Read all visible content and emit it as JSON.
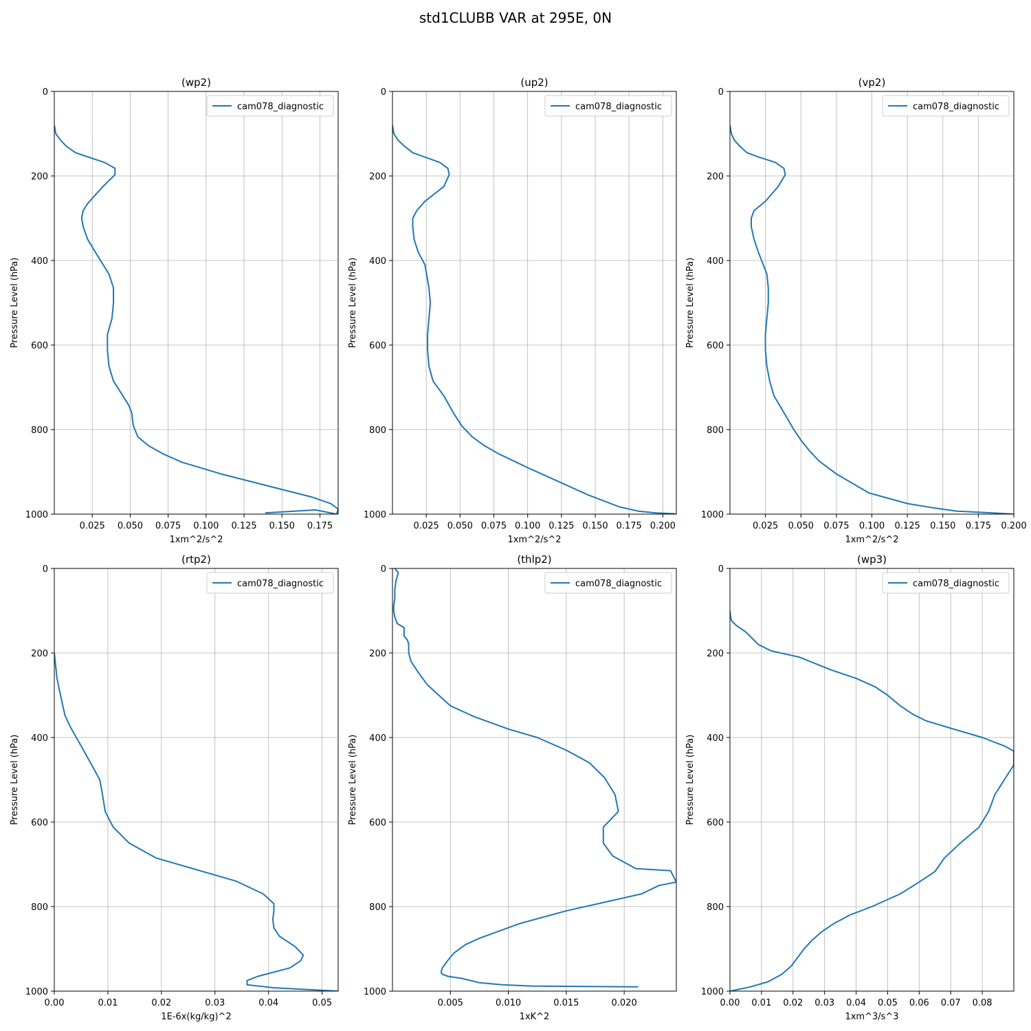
{
  "figure_title": "std1CLUBB VAR at 295E, 0N",
  "colors": {
    "series": "#1f77b4",
    "grid": "#b0b0b0",
    "axis": "#000000"
  },
  "chart_data": [
    {
      "type": "line",
      "title": "(wp2)",
      "xlabel": "1xm^2/s^2",
      "ylabel": "Pressure Level (hPa)",
      "xlim": [
        0.0,
        0.187
      ],
      "ylim": [
        1000,
        0
      ],
      "xticks": [
        0.025,
        0.05,
        0.075,
        0.1,
        0.125,
        0.15,
        0.175
      ],
      "xtick_labels": [
        "0.025",
        "0.050",
        "0.075",
        "0.100",
        "0.125",
        "0.150",
        "0.175"
      ],
      "yticks": [
        0,
        200,
        400,
        600,
        800,
        1000
      ],
      "ytick_labels": [
        "0",
        "200",
        "400",
        "600",
        "800",
        "1000"
      ],
      "grid": true,
      "legend_position": "upper right",
      "series": [
        {
          "name": "cam078_diagnostic",
          "x": [
            0.0,
            0.001,
            0.004,
            0.008,
            0.014,
            0.033,
            0.04,
            0.04,
            0.032,
            0.022,
            0.019,
            0.018,
            0.019,
            0.022,
            0.027,
            0.036,
            0.039,
            0.039,
            0.038,
            0.035,
            0.035,
            0.036,
            0.039,
            0.049,
            0.051,
            0.052,
            0.055,
            0.062,
            0.072,
            0.084,
            0.11,
            0.17,
            0.182,
            0.187,
            0.186,
            0.172,
            0.139
          ],
          "y": [
            80,
            100,
            115,
            130,
            145,
            168,
            182,
            197,
            225,
            265,
            282,
            300,
            320,
            350,
            380,
            432,
            465,
            500,
            537,
            575,
            612,
            650,
            685,
            742,
            760,
            790,
            817,
            838,
            858,
            877,
            905,
            960,
            975,
            988,
            1000,
            990,
            997
          ]
        }
      ]
    },
    {
      "type": "line",
      "title": "(up2)",
      "xlabel": "1xm^2/s^2",
      "ylabel": "Pressure Level (hPa)",
      "xlim": [
        0.0,
        0.21
      ],
      "ylim": [
        1000,
        0
      ],
      "xticks": [
        0.025,
        0.05,
        0.075,
        0.1,
        0.125,
        0.15,
        0.175,
        0.2
      ],
      "xtick_labels": [
        "0.025",
        "0.050",
        "0.075",
        "0.100",
        "0.125",
        "0.150",
        "0.175",
        "0.200"
      ],
      "yticks": [
        0,
        200,
        400,
        600,
        800,
        1000
      ],
      "ytick_labels": [
        "0",
        "200",
        "400",
        "600",
        "800",
        "1000"
      ],
      "grid": true,
      "legend_position": "upper right",
      "series": [
        {
          "name": "cam078_diagnostic",
          "x": [
            0.0,
            0.001,
            0.004,
            0.009,
            0.015,
            0.035,
            0.041,
            0.042,
            0.038,
            0.024,
            0.018,
            0.015,
            0.015,
            0.016,
            0.019,
            0.024,
            0.027,
            0.028,
            0.027,
            0.026,
            0.026,
            0.027,
            0.03,
            0.038,
            0.045,
            0.051,
            0.059,
            0.068,
            0.079,
            0.1,
            0.145,
            0.168,
            0.182,
            0.195,
            0.208,
            0.21
          ],
          "y": [
            80,
            100,
            115,
            130,
            145,
            168,
            182,
            197,
            225,
            260,
            282,
            300,
            320,
            350,
            380,
            410,
            465,
            500,
            537,
            575,
            612,
            650,
            685,
            720,
            760,
            790,
            817,
            838,
            858,
            890,
            955,
            983,
            993,
            997,
            999,
            1000
          ]
        }
      ]
    },
    {
      "type": "line",
      "title": "(vp2)",
      "xlabel": "1xm^2/s^2",
      "ylabel": "Pressure Level (hPa)",
      "xlim": [
        0.0,
        0.2
      ],
      "ylim": [
        1000,
        0
      ],
      "xticks": [
        0.025,
        0.05,
        0.075,
        0.1,
        0.125,
        0.15,
        0.175,
        0.2
      ],
      "xtick_labels": [
        "0.025",
        "0.050",
        "0.075",
        "0.100",
        "0.125",
        "0.150",
        "0.175",
        "0.200"
      ],
      "yticks": [
        0,
        200,
        400,
        600,
        800,
        1000
      ],
      "ytick_labels": [
        "0",
        "200",
        "400",
        "600",
        "800",
        "1000"
      ],
      "grid": true,
      "legend_position": "upper right",
      "series": [
        {
          "name": "cam078_diagnostic",
          "x": [
            0.0,
            0.001,
            0.003,
            0.007,
            0.012,
            0.02,
            0.032,
            0.038,
            0.039,
            0.034,
            0.025,
            0.017,
            0.015,
            0.015,
            0.017,
            0.02,
            0.026,
            0.027,
            0.027,
            0.026,
            0.025,
            0.025,
            0.026,
            0.028,
            0.031,
            0.038,
            0.045,
            0.05,
            0.056,
            0.063,
            0.075,
            0.098,
            0.125,
            0.143,
            0.16,
            0.185,
            0.2
          ],
          "y": [
            80,
            100,
            115,
            130,
            145,
            155,
            168,
            182,
            197,
            225,
            260,
            282,
            300,
            320,
            350,
            380,
            432,
            465,
            500,
            537,
            575,
            612,
            650,
            685,
            720,
            760,
            800,
            825,
            850,
            875,
            905,
            950,
            975,
            985,
            993,
            997,
            1000
          ]
        }
      ]
    },
    {
      "type": "line",
      "title": "(rtp2)",
      "xlabel": "1E-6x(kg/kg)^2",
      "ylabel": "Pressure Level (hPa)",
      "xlim": [
        0.0,
        0.053
      ],
      "ylim": [
        1000,
        0
      ],
      "xticks": [
        0.0,
        0.01,
        0.02,
        0.03,
        0.04,
        0.05
      ],
      "xtick_labels": [
        "0.00",
        "0.01",
        "0.02",
        "0.03",
        "0.04",
        "0.05"
      ],
      "yticks": [
        0,
        200,
        400,
        600,
        800,
        1000
      ],
      "ytick_labels": [
        "0",
        "200",
        "400",
        "600",
        "800",
        "1000"
      ],
      "grid": true,
      "legend_position": "upper right",
      "series": [
        {
          "name": "cam078_diagnostic",
          "x": [
            0.0,
            0.0005,
            0.001,
            0.0015,
            0.002,
            0.003,
            0.005,
            0.007,
            0.0085,
            0.009,
            0.0095,
            0.011,
            0.014,
            0.019,
            0.034,
            0.039,
            0.041,
            0.041,
            0.0408,
            0.041,
            0.042,
            0.045,
            0.0465,
            0.046,
            0.044,
            0.038,
            0.036,
            0.036,
            0.041,
            0.053
          ],
          "y": [
            200,
            260,
            290,
            320,
            348,
            375,
            420,
            465,
            500,
            535,
            575,
            612,
            650,
            685,
            740,
            770,
            793,
            810,
            830,
            850,
            870,
            895,
            915,
            928,
            945,
            965,
            975,
            985,
            992,
            1000
          ]
        }
      ]
    },
    {
      "type": "line",
      "title": "(thlp2)",
      "xlabel": "1xK^2",
      "ylabel": "Pressure Level (hPa)",
      "xlim": [
        0.0,
        0.0245
      ],
      "ylim": [
        1000,
        0
      ],
      "xticks": [
        0.005,
        0.01,
        0.015,
        0.02
      ],
      "xtick_labels": [
        "0.005",
        "0.010",
        "0.015",
        "0.020"
      ],
      "yticks": [
        0,
        200,
        400,
        600,
        800,
        1000
      ],
      "ytick_labels": [
        "0",
        "200",
        "400",
        "600",
        "800",
        "1000"
      ],
      "grid": true,
      "legend_position": "upper right",
      "series": [
        {
          "name": "cam078_diagnostic",
          "x": [
            0.0002,
            0.0005,
            0.0003,
            0.0002,
            0.0002,
            0.0001,
            0.0001,
            0.0002,
            0.0004,
            0.001,
            0.001,
            0.0013,
            0.0014,
            0.0014,
            0.0016,
            0.0022,
            0.003,
            0.004,
            0.005,
            0.007,
            0.01,
            0.0125,
            0.015,
            0.017,
            0.0183,
            0.0192,
            0.0195,
            0.0182,
            0.0182,
            0.019,
            0.021,
            0.024,
            0.0245,
            0.023,
            0.0215,
            0.015,
            0.011,
            0.009,
            0.0075,
            0.0063,
            0.0053,
            0.0047,
            0.0043,
            0.0042,
            0.0043,
            0.0048,
            0.006,
            0.0075,
            0.0095,
            0.012,
            0.0212
          ],
          "y": [
            0,
            10,
            30,
            50,
            70,
            90,
            100,
            115,
            130,
            140,
            160,
            170,
            180,
            200,
            220,
            245,
            275,
            300,
            325,
            350,
            380,
            400,
            430,
            460,
            495,
            535,
            575,
            612,
            650,
            680,
            710,
            715,
            742,
            750,
            770,
            810,
            840,
            860,
            875,
            890,
            910,
            930,
            945,
            955,
            960,
            965,
            970,
            980,
            985,
            988,
            990
          ]
        }
      ]
    },
    {
      "type": "line",
      "title": "(wp3)",
      "xlabel": "1xm^3/s^3",
      "ylabel": "Pressure Level (hPa)",
      "xlim": [
        0.0,
        0.09
      ],
      "ylim": [
        1000,
        0
      ],
      "xticks": [
        0.0,
        0.01,
        0.02,
        0.03,
        0.04,
        0.05,
        0.06,
        0.07,
        0.08
      ],
      "xtick_labels": [
        "0.00",
        "0.01",
        "0.02",
        "0.03",
        "0.04",
        "0.05",
        "0.06",
        "0.07",
        "0.08"
      ],
      "yticks": [
        0,
        200,
        400,
        600,
        800,
        1000
      ],
      "ytick_labels": [
        "0",
        "200",
        "400",
        "600",
        "800",
        "1000"
      ],
      "grid": true,
      "legend_position": "upper right",
      "series": [
        {
          "name": "cam078_diagnostic",
          "x": [
            0.0,
            0.0002,
            0.0006,
            0.002,
            0.005,
            0.007,
            0.009,
            0.013,
            0.022,
            0.032,
            0.04,
            0.046,
            0.05,
            0.054,
            0.058,
            0.062,
            0.07,
            0.08,
            0.087,
            0.09,
            0.09,
            0.087,
            0.084,
            0.082,
            0.079,
            0.073,
            0.068,
            0.065,
            0.06,
            0.054,
            0.045,
            0.038,
            0.033,
            0.029,
            0.026,
            0.0235,
            0.0215,
            0.0195,
            0.0165,
            0.012,
            0.0065,
            0.0
          ],
          "y": [
            100,
            115,
            125,
            135,
            150,
            165,
            180,
            195,
            210,
            240,
            260,
            280,
            300,
            325,
            345,
            360,
            378,
            400,
            420,
            432,
            465,
            500,
            535,
            575,
            612,
            650,
            685,
            717,
            742,
            770,
            800,
            820,
            840,
            860,
            880,
            900,
            920,
            940,
            960,
            978,
            990,
            1000
          ]
        }
      ]
    }
  ]
}
